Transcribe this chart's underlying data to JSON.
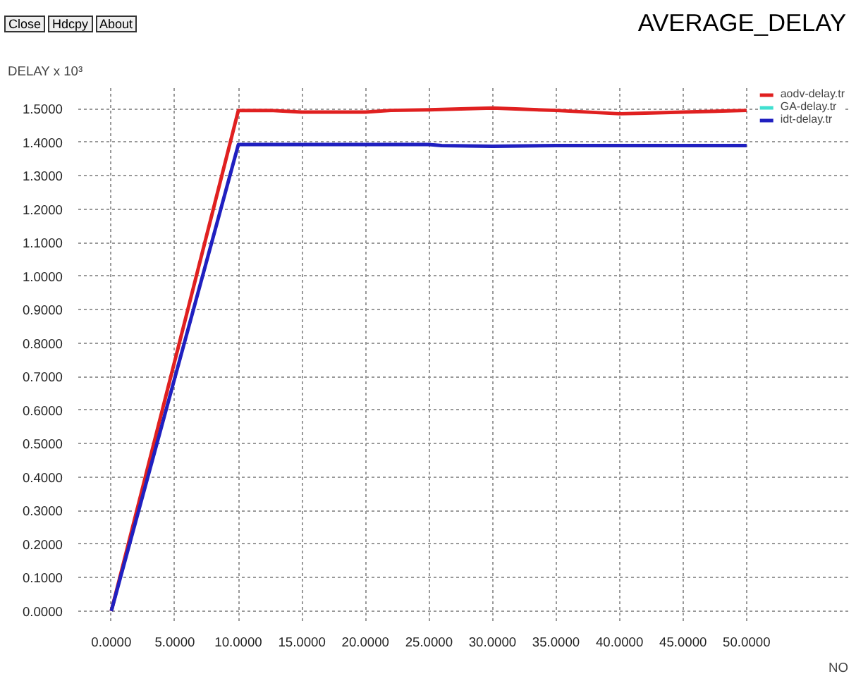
{
  "chart_data": {
    "type": "line",
    "title": "AVERAGE_DELAY",
    "ylabel": "DELAY x 10³",
    "xlabel": "NO",
    "annotations": [
      "Close",
      "Hdcpy",
      "About"
    ],
    "xlim": [
      -2.6,
      58
    ],
    "ylim": [
      -0.03,
      1.57
    ],
    "xticks": [
      {
        "value": 0,
        "label": "0.0000"
      },
      {
        "value": 5,
        "label": "5.0000"
      },
      {
        "value": 10,
        "label": "10.0000"
      },
      {
        "value": 15,
        "label": "15.0000"
      },
      {
        "value": 20,
        "label": "20.0000"
      },
      {
        "value": 25,
        "label": "25.0000"
      },
      {
        "value": 30,
        "label": "30.0000"
      },
      {
        "value": 35,
        "label": "35.0000"
      },
      {
        "value": 40,
        "label": "40.0000"
      },
      {
        "value": 45,
        "label": "45.0000"
      },
      {
        "value": 50,
        "label": "50.0000"
      }
    ],
    "yticks": [
      {
        "value": 0,
        "label": "0.0000"
      },
      {
        "value": 0.1,
        "label": "0.1000"
      },
      {
        "value": 0.2,
        "label": "0.2000"
      },
      {
        "value": 0.3,
        "label": "0.3000"
      },
      {
        "value": 0.4,
        "label": "0.4000"
      },
      {
        "value": 0.5,
        "label": "0.5000"
      },
      {
        "value": 0.6,
        "label": "0.6000"
      },
      {
        "value": 0.7,
        "label": "0.7000"
      },
      {
        "value": 0.8,
        "label": "0.8000"
      },
      {
        "value": 0.9,
        "label": "0.9000"
      },
      {
        "value": 1.0,
        "label": "1.0000"
      },
      {
        "value": 1.1,
        "label": "1.1000"
      },
      {
        "value": 1.2,
        "label": "1.2000"
      },
      {
        "value": 1.3,
        "label": "1.3000"
      },
      {
        "value": 1.4,
        "label": "1.4000"
      },
      {
        "value": 1.5,
        "label": "1.5000"
      }
    ],
    "grid": true,
    "legend": "top right",
    "line_style": "solid",
    "series": [
      {
        "name": "aodv-delay.tr",
        "color": "#e02020",
        "x": [
          0,
          10,
          12.5,
          15,
          20,
          22,
          25,
          30,
          35,
          40,
          42,
          45,
          50
        ],
        "values": [
          0,
          1.495,
          1.495,
          1.49,
          1.49,
          1.495,
          1.497,
          1.502,
          1.495,
          1.485,
          1.487,
          1.49,
          1.495
        ]
      },
      {
        "name": "GA-delay.tr",
        "color": "#40e0d0",
        "values": [
          null
        ]
      },
      {
        "name": "idt-delay.tr",
        "color": "#2020c0",
        "x": [
          0,
          10,
          25,
          26,
          30,
          35,
          50
        ],
        "values": [
          0,
          1.393,
          1.393,
          1.39,
          1.388,
          1.39,
          1.39
        ]
      }
    ]
  }
}
